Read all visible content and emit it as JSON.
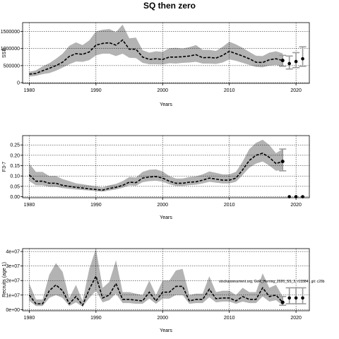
{
  "figure": {
    "title": "SQ then zero",
    "note": "stockassessment.org,  GoR_Herring_2020_SS_3, r13384 , git: c28b"
  },
  "chart_data": [
    {
      "type": "line",
      "id": "ssb",
      "ylabel": "SSB",
      "xlabel": "Years",
      "xlim": [
        1979,
        2022
      ],
      "ylim": [
        -20000,
        1760000
      ],
      "xticks": [
        1980,
        1990,
        2000,
        2010,
        2020
      ],
      "xtick_labels": [
        "1980",
        "1990",
        "2000",
        "2010",
        "2020"
      ],
      "yticks": [
        0,
        500000,
        1000000,
        1500000
      ],
      "ytick_labels": [
        "0",
        "500000",
        "1000000",
        "1500000"
      ],
      "grid": true,
      "years": [
        1980,
        1981,
        1982,
        1983,
        1984,
        1985,
        1986,
        1987,
        1988,
        1989,
        1990,
        1991,
        1992,
        1993,
        1994,
        1995,
        1996,
        1997,
        1998,
        1999,
        2000,
        2001,
        2002,
        2003,
        2004,
        2005,
        2006,
        2007,
        2008,
        2009,
        2010,
        2011,
        2012,
        2013,
        2014,
        2015,
        2016,
        2017,
        2018
      ],
      "estimate": [
        250000,
        270000,
        350000,
        420000,
        500000,
        600000,
        770000,
        850000,
        830000,
        900000,
        1100000,
        1150000,
        1170000,
        1100000,
        1250000,
        980000,
        980000,
        750000,
        680000,
        700000,
        680000,
        750000,
        750000,
        760000,
        780000,
        820000,
        730000,
        740000,
        720000,
        800000,
        920000,
        850000,
        780000,
        700000,
        600000,
        590000,
        670000,
        700000,
        650000
      ],
      "lower": [
        180000,
        200000,
        250000,
        280000,
        350000,
        440000,
        540000,
        620000,
        610000,
        660000,
        800000,
        850000,
        850000,
        780000,
        850000,
        730000,
        720000,
        580000,
        540000,
        540000,
        530000,
        570000,
        560000,
        580000,
        590000,
        610000,
        560000,
        560000,
        550000,
        590000,
        680000,
        640000,
        580000,
        520000,
        460000,
        450000,
        500000,
        520000,
        470000
      ],
      "upper": [
        320000,
        360000,
        480000,
        570000,
        700000,
        850000,
        1080000,
        1180000,
        1100000,
        1240000,
        1500000,
        1550000,
        1570000,
        1480000,
        1700000,
        1300000,
        1320000,
        950000,
        880000,
        920000,
        900000,
        1010000,
        1020000,
        1000000,
        1040000,
        1100000,
        960000,
        960000,
        930000,
        1050000,
        1200000,
        1120000,
        1020000,
        900000,
        790000,
        780000,
        880000,
        920000,
        860000
      ],
      "forecast": {
        "years": [
          2019,
          2020,
          2021
        ],
        "median": [
          560000,
          620000,
          700000
        ],
        "lower": [
          400000,
          440000,
          480000
        ],
        "upper": [
          780000,
          880000,
          1050000
        ],
        "last_year": 2018,
        "last_lower": 480000,
        "last_upper": 800000
      }
    },
    {
      "type": "line",
      "id": "f",
      "ylabel": "F3-7",
      "xlabel": "Years",
      "xlim": [
        1979,
        2022
      ],
      "ylim": [
        -0.005,
        0.295
      ],
      "xticks": [
        1980,
        1990,
        2000,
        2010,
        2020
      ],
      "xtick_labels": [
        "1980",
        "1990",
        "2000",
        "2010",
        "2020"
      ],
      "yticks": [
        0,
        0.05,
        0.1,
        0.15,
        0.2,
        0.25
      ],
      "ytick_labels": [
        "0.00",
        "0.05",
        "0.10",
        "0.15",
        "0.20",
        "0.25"
      ],
      "grid": true,
      "years": [
        1980,
        1981,
        1982,
        1983,
        1984,
        1985,
        1986,
        1987,
        1988,
        1989,
        1990,
        1991,
        1992,
        1993,
        1994,
        1995,
        1996,
        1997,
        1998,
        1999,
        2000,
        2001,
        2002,
        2003,
        2004,
        2005,
        2006,
        2007,
        2008,
        2009,
        2010,
        2011,
        2012,
        2013,
        2014,
        2015,
        2016,
        2017,
        2018
      ],
      "estimate": [
        0.105,
        0.075,
        0.075,
        0.065,
        0.065,
        0.055,
        0.05,
        0.045,
        0.042,
        0.038,
        0.035,
        0.032,
        0.04,
        0.045,
        0.055,
        0.07,
        0.068,
        0.09,
        0.095,
        0.097,
        0.09,
        0.075,
        0.065,
        0.065,
        0.07,
        0.072,
        0.08,
        0.09,
        0.085,
        0.08,
        0.08,
        0.09,
        0.13,
        0.175,
        0.2,
        0.21,
        0.19,
        0.16,
        0.17
      ],
      "lower": [
        0.075,
        0.055,
        0.055,
        0.048,
        0.048,
        0.042,
        0.038,
        0.035,
        0.032,
        0.03,
        0.027,
        0.025,
        0.03,
        0.035,
        0.043,
        0.055,
        0.053,
        0.07,
        0.075,
        0.077,
        0.072,
        0.06,
        0.052,
        0.052,
        0.056,
        0.058,
        0.064,
        0.072,
        0.068,
        0.064,
        0.064,
        0.072,
        0.105,
        0.14,
        0.16,
        0.17,
        0.15,
        0.125,
        0.13
      ],
      "upper": [
        0.16,
        0.12,
        0.12,
        0.1,
        0.1,
        0.085,
        0.075,
        0.065,
        0.06,
        0.055,
        0.05,
        0.045,
        0.055,
        0.062,
        0.075,
        0.095,
        0.093,
        0.12,
        0.13,
        0.132,
        0.122,
        0.1,
        0.088,
        0.088,
        0.095,
        0.098,
        0.108,
        0.122,
        0.115,
        0.108,
        0.108,
        0.12,
        0.17,
        0.23,
        0.26,
        0.275,
        0.25,
        0.21,
        0.23
      ],
      "forecast": {
        "years": [
          2019,
          2020,
          2021
        ],
        "median": [
          0,
          0,
          0
        ],
        "lower": [
          0,
          0,
          0
        ],
        "upper": [
          0,
          0,
          0
        ],
        "last_year": 2018,
        "last_lower": 0.125,
        "last_upper": 0.23
      }
    },
    {
      "type": "line",
      "id": "rec",
      "ylabel": "Recruits (age 1)",
      "xlabel": "Years",
      "xlim": [
        1979,
        2022
      ],
      "ylim": [
        -800000,
        42000000
      ],
      "xticks": [
        1980,
        1990,
        2000,
        2010,
        2020
      ],
      "xtick_labels": [
        "1980",
        "1990",
        "2000",
        "2010",
        "2020"
      ],
      "yticks": [
        0,
        10000000,
        20000000,
        30000000,
        40000000
      ],
      "ytick_labels": [
        "0e+00",
        "1e+07",
        "2e+07",
        "3e+07",
        "4e+07"
      ],
      "grid": true,
      "years": [
        1980,
        1981,
        1982,
        1983,
        1984,
        1985,
        1986,
        1987,
        1988,
        1989,
        1990,
        1991,
        1992,
        1993,
        1994,
        1995,
        1996,
        1997,
        1998,
        1999,
        2000,
        2001,
        2002,
        2003,
        2004,
        2005,
        2006,
        2007,
        2008,
        2009,
        2010,
        2011,
        2012,
        2013,
        2014,
        2015,
        2016,
        2017,
        2018
      ],
      "estimate": [
        10000000,
        4000000,
        4000000,
        13000000,
        17000000,
        13000000,
        4000000,
        9000000,
        3000000,
        14000000,
        23000000,
        8000000,
        10000000,
        18000000,
        7000000,
        7000000,
        6500000,
        6000000,
        12000000,
        6000000,
        12000000,
        12000000,
        16000000,
        16000000,
        6000000,
        7000000,
        7000000,
        14000000,
        7500000,
        8000000,
        8000000,
        6000000,
        9000000,
        7000000,
        7000000,
        15000000,
        9000000,
        10000000,
        5000000
      ],
      "lower": [
        6000000,
        2500000,
        2500000,
        8000000,
        10000000,
        8000000,
        2500000,
        5000000,
        2000000,
        8000000,
        13000000,
        5000000,
        6500000,
        11000000,
        4500000,
        4500000,
        4000000,
        4000000,
        7500000,
        4000000,
        7500000,
        7500000,
        10000000,
        10000000,
        4000000,
        4500000,
        4500000,
        8500000,
        5000000,
        5500000,
        5500000,
        4000000,
        5500000,
        4500000,
        4500000,
        9000000,
        5500000,
        6500000,
        3000000
      ],
      "upper": [
        18000000,
        7000000,
        7000000,
        24000000,
        32000000,
        26000000,
        8000000,
        17000000,
        6000000,
        28000000,
        42000000,
        15000000,
        19000000,
        34000000,
        12000000,
        12000000,
        11000000,
        10000000,
        20000000,
        10000000,
        20000000,
        20000000,
        27000000,
        28000000,
        10000000,
        11000000,
        11000000,
        23000000,
        12000000,
        13000000,
        13000000,
        10000000,
        15000000,
        12000000,
        12000000,
        25000000,
        15000000,
        17000000,
        9000000
      ],
      "forecast": {
        "years": [
          2019,
          2020,
          2021
        ],
        "median": [
          8000000,
          8000000,
          8000000
        ],
        "lower": [
          4000000,
          4000000,
          4000000
        ],
        "upper": [
          15000000,
          15000000,
          15000000
        ],
        "last_year": 2018,
        "last_lower": 3000000,
        "last_upper": 9000000
      }
    }
  ]
}
